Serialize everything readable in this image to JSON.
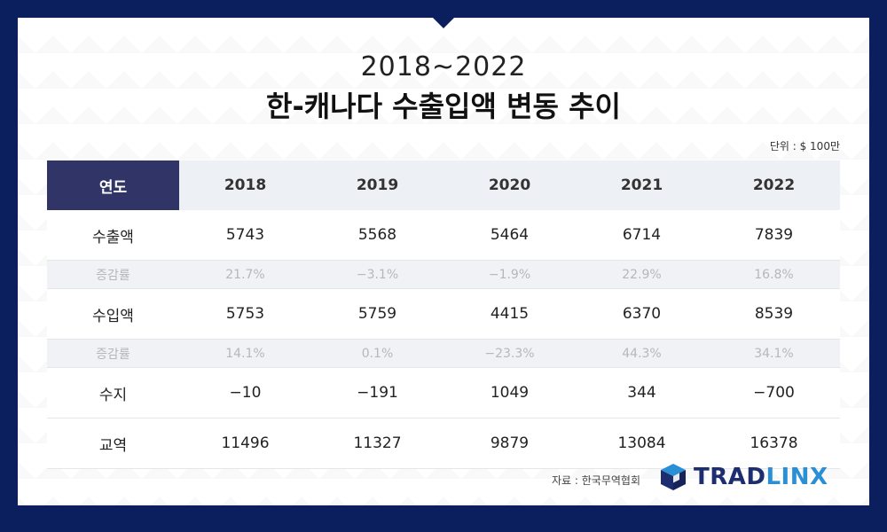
{
  "title_line1": "2018~2022",
  "title_line2": "한-캐나다 수출입액 변동 추이",
  "unit": "단위 : $ 100만",
  "table": {
    "corner": "연도",
    "years": [
      "2018",
      "2019",
      "2020",
      "2021",
      "2022"
    ],
    "rows": [
      {
        "label": "수출액",
        "kind": "main",
        "values": [
          "5743",
          "5568",
          "5464",
          "6714",
          "7839"
        ]
      },
      {
        "label": "증감률",
        "kind": "rate",
        "values": [
          "21.7%",
          "−3.1%",
          "−1.9%",
          "22.9%",
          "16.8%"
        ]
      },
      {
        "label": "수입액",
        "kind": "main",
        "values": [
          "5753",
          "5759",
          "4415",
          "6370",
          "8539"
        ]
      },
      {
        "label": "증감률",
        "kind": "rate",
        "values": [
          "14.1%",
          "0.1%",
          "−23.3%",
          "44.3%",
          "34.1%"
        ]
      },
      {
        "label": "수지",
        "kind": "main",
        "values": [
          "−10",
          "−191",
          "1049",
          "344",
          "−700"
        ]
      },
      {
        "label": "교역",
        "kind": "main",
        "values": [
          "11496",
          "11327",
          "9879",
          "13084",
          "16378"
        ]
      }
    ]
  },
  "source": "자료 : 한국무역협회",
  "logo": {
    "part1": "TRAD",
    "part2": "LINX",
    "icon": "cube-logo-icon"
  },
  "colors": {
    "frame": "#0b1f5e",
    "header_dark": "#303466",
    "logo_dark": "#1c2d70",
    "logo_accent": "#2b8fd6"
  }
}
